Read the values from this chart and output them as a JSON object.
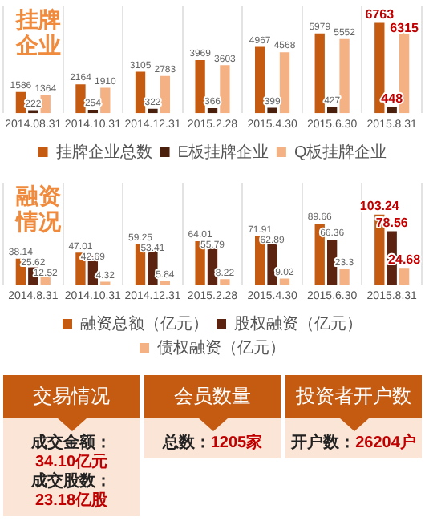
{
  "chart_data": [
    {
      "type": "bar",
      "title": "挂牌企业",
      "categories": [
        "2014.08.31",
        "2014.10.31",
        "2014.12.31",
        "2015.2.28",
        "2015.4.30",
        "2015.6.30",
        "2015.8.31"
      ],
      "series": [
        {
          "name": "挂牌企业总数",
          "color": "#c55a11",
          "values": [
            1586,
            2164,
            3105,
            3969,
            4967,
            5979,
            6763
          ]
        },
        {
          "name": "E板挂牌企业",
          "color": "#4a1f0c",
          "values": [
            222,
            254,
            322,
            366,
            399,
            427,
            448
          ]
        },
        {
          "name": "Q板挂牌企业",
          "color": "#f4b183",
          "values": [
            1364,
            1910,
            2783,
            3603,
            4568,
            5552,
            6315
          ]
        }
      ],
      "data_labels": true,
      "grid": "x",
      "legend": "bottom"
    },
    {
      "type": "bar",
      "title": "融资情况",
      "categories": [
        "2014.8.31",
        "2014.10.31",
        "2014.12.31",
        "2015.2.28",
        "2015.4.30",
        "2015.6.30",
        "2015.8.31"
      ],
      "series": [
        {
          "name": "融资总额（亿元）",
          "color": "#c55a11",
          "values": [
            38.14,
            47.01,
            59.25,
            64.01,
            71.91,
            89.66,
            103.24
          ]
        },
        {
          "name": "股权融资（亿元）",
          "color": "#5c2410",
          "values": [
            25.62,
            42.69,
            53.41,
            55.79,
            62.89,
            66.36,
            78.56
          ]
        },
        {
          "name": "债权融资（亿元）",
          "color": "#f4b183",
          "values": [
            12.52,
            4.32,
            5.84,
            8.22,
            9.02,
            23.3,
            24.68
          ]
        }
      ],
      "data_labels": true,
      "grid": "x",
      "legend": "bottom"
    },
    {
      "type": "other",
      "title": "交易情况",
      "annotations": [
        "成交金额：34.10亿元",
        "成交股数：23.18亿股"
      ]
    },
    {
      "type": "other",
      "title": "会员数量",
      "annotations": [
        "总数：1205家"
      ]
    },
    {
      "type": "other",
      "title": "投资者开户数",
      "annotations": [
        "开户数：26204户"
      ]
    }
  ]
}
